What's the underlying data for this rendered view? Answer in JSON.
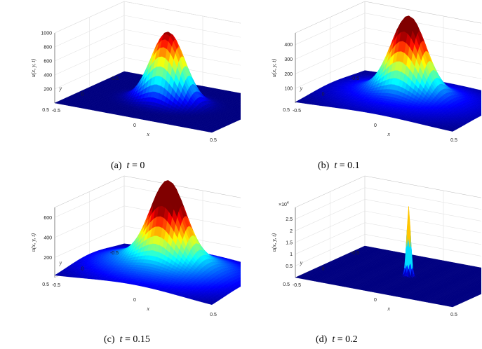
{
  "chart_data": [
    {
      "type": "surface",
      "caption_label": "(a)",
      "caption_var": "t",
      "caption_eq": "= 0",
      "xlabel": "x",
      "ylabel": "y",
      "zlabel": "u(x, y, t)",
      "x_ticks": [
        "-0.5",
        "0",
        "0.5"
      ],
      "y_ticks": [
        "-0.5",
        "0",
        "0.5"
      ],
      "z_ticks": [
        "200",
        "400",
        "600",
        "800",
        "1000"
      ],
      "z_multiplier": "",
      "zlim": [
        0,
        1000
      ],
      "peak": 1000,
      "peak_width": 0.1,
      "shoulder": 0,
      "shoulder_width": 0.2,
      "colormap": "jet",
      "grid": true
    },
    {
      "type": "surface",
      "caption_label": "(b)",
      "caption_var": "t",
      "caption_eq": "= 0.1",
      "xlabel": "x",
      "ylabel": "y",
      "zlabel": "u(x, y, t)",
      "x_ticks": [
        "-0.5",
        "0",
        "0.5"
      ],
      "y_ticks": [
        "-0.5",
        "0",
        "0.5"
      ],
      "z_ticks": [
        "100",
        "200",
        "300",
        "400"
      ],
      "z_multiplier": "",
      "zlim": [
        0,
        480
      ],
      "peak": 480,
      "peak_width": 0.1,
      "shoulder": 110,
      "shoulder_width": 0.3,
      "colormap": "jet",
      "grid": true
    },
    {
      "type": "surface",
      "caption_label": "(c)",
      "caption_var": "t",
      "caption_eq": "= 0.15",
      "xlabel": "x",
      "ylabel": "y",
      "zlabel": "u(x, y, t)",
      "x_ticks": [
        "-0.5",
        "0",
        "0.5"
      ],
      "y_ticks": [
        "-0.5",
        "0",
        "0.5"
      ],
      "z_ticks": [
        "200",
        "400",
        "600"
      ],
      "z_multiplier": "",
      "zlim": [
        0,
        700
      ],
      "peak": 700,
      "peak_width": 0.1,
      "shoulder": 260,
      "shoulder_width": 0.32,
      "colormap": "jet",
      "grid": true
    },
    {
      "type": "surface",
      "caption_label": "(d)",
      "caption_var": "t",
      "caption_eq": "= 0.2",
      "xlabel": "x",
      "ylabel": "y",
      "zlabel": "u(x, y, t)",
      "x_ticks": [
        "-0.5",
        "0",
        "0.5"
      ],
      "y_ticks": [
        "-0.5",
        "0",
        "0.5"
      ],
      "z_ticks": [
        "0.5",
        "1",
        "1.5",
        "2",
        "2.5"
      ],
      "z_multiplier": "×10",
      "z_multiplier_exp": "4",
      "zlim": [
        0,
        3
      ],
      "peak": 3,
      "peak_width": 0.012,
      "shoulder": 0,
      "shoulder_width": 0.2,
      "colormap": "jet",
      "grid": true
    }
  ]
}
